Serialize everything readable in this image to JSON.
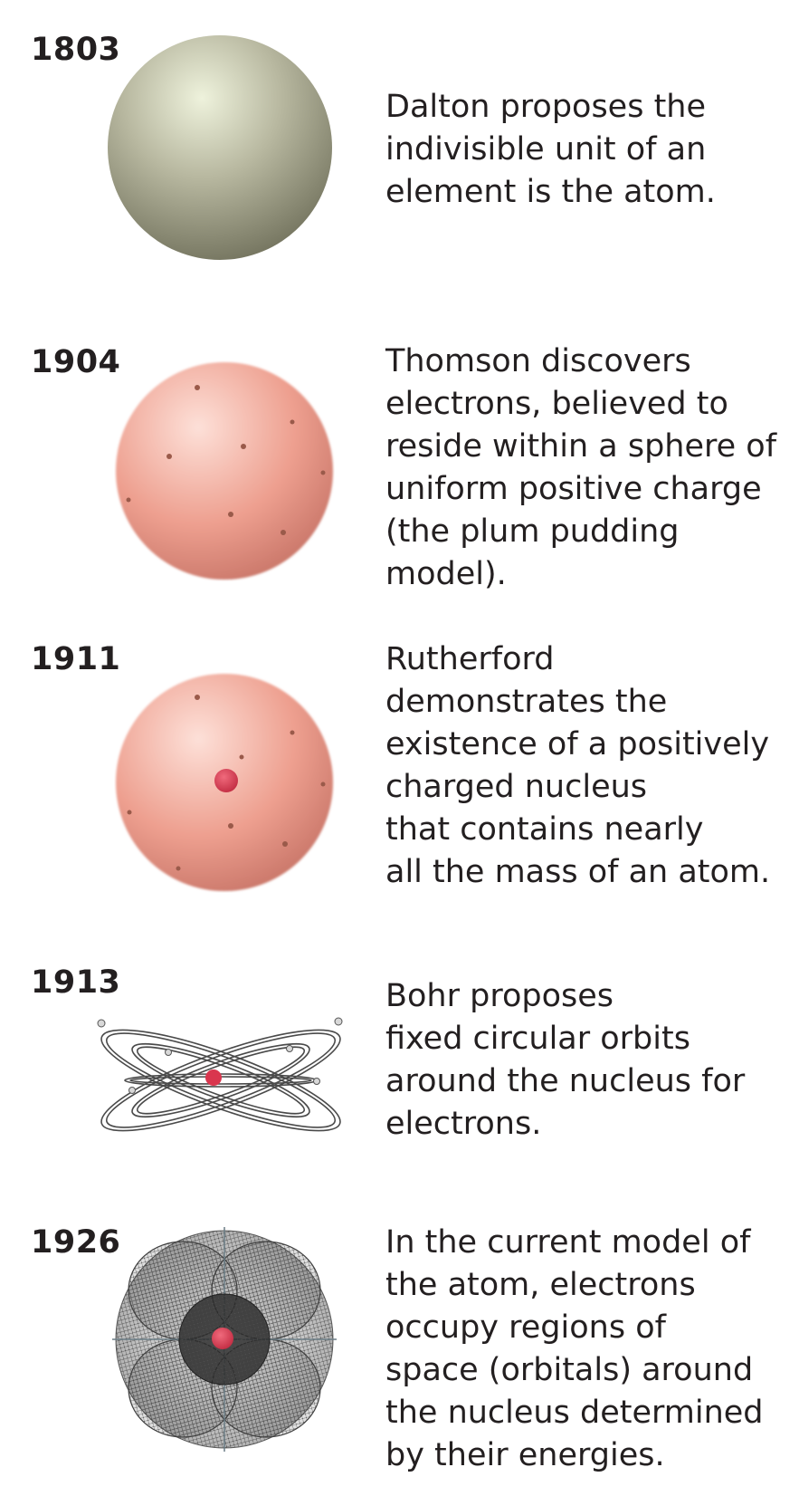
{
  "timeline": [
    {
      "year": "1803",
      "lines": [
        "Dalton proposes the",
        "indivisible unit of an",
        "element is the atom."
      ],
      "figure_icon": "solid-sphere-icon",
      "colors": {
        "sphere_light": "#eef2dc",
        "sphere_mid": "#b8b8a0",
        "sphere_dark": "#6f6f5a"
      }
    },
    {
      "year": "1904",
      "lines": [
        "Thomson discovers",
        "electrons, believed to",
        "reside within a sphere of",
        "uniform positive charge",
        "(the plum pudding",
        "model)."
      ],
      "figure_icon": "plum-pudding-sphere-icon",
      "colors": {
        "sphere_light": "#fcd8cf",
        "sphere_mid": "#eea090",
        "sphere_dark": "#c47063",
        "electron": "#9a5a4a"
      }
    },
    {
      "year": "1911",
      "lines": [
        "Rutherford",
        "demonstrates the",
        "existence of a positively",
        "charged nucleus",
        "that contains nearly",
        "all the mass of an atom."
      ],
      "figure_icon": "nuclear-sphere-icon",
      "colors": {
        "sphere_light": "#fcd8cf",
        "sphere_mid": "#eea090",
        "sphere_dark": "#c47063",
        "electron": "#9a5a4a",
        "nucleus": "#d9364e"
      }
    },
    {
      "year": "1913",
      "lines": [
        "Bohr proposes",
        "fixed circular orbits",
        "around the nucleus for",
        "electrons."
      ],
      "figure_icon": "bohr-orbits-icon",
      "colors": {
        "orbit": "#555555",
        "nucleus": "#d9364e"
      }
    },
    {
      "year": "1926",
      "lines": [
        "In the current model of",
        "the atom, electrons",
        "occupy regions of",
        "space (orbitals) around",
        "the nucleus determined",
        "by their energies."
      ],
      "figure_icon": "orbital-cloud-icon",
      "colors": {
        "mesh": "#444444",
        "nucleus": "#d9364e"
      }
    }
  ]
}
